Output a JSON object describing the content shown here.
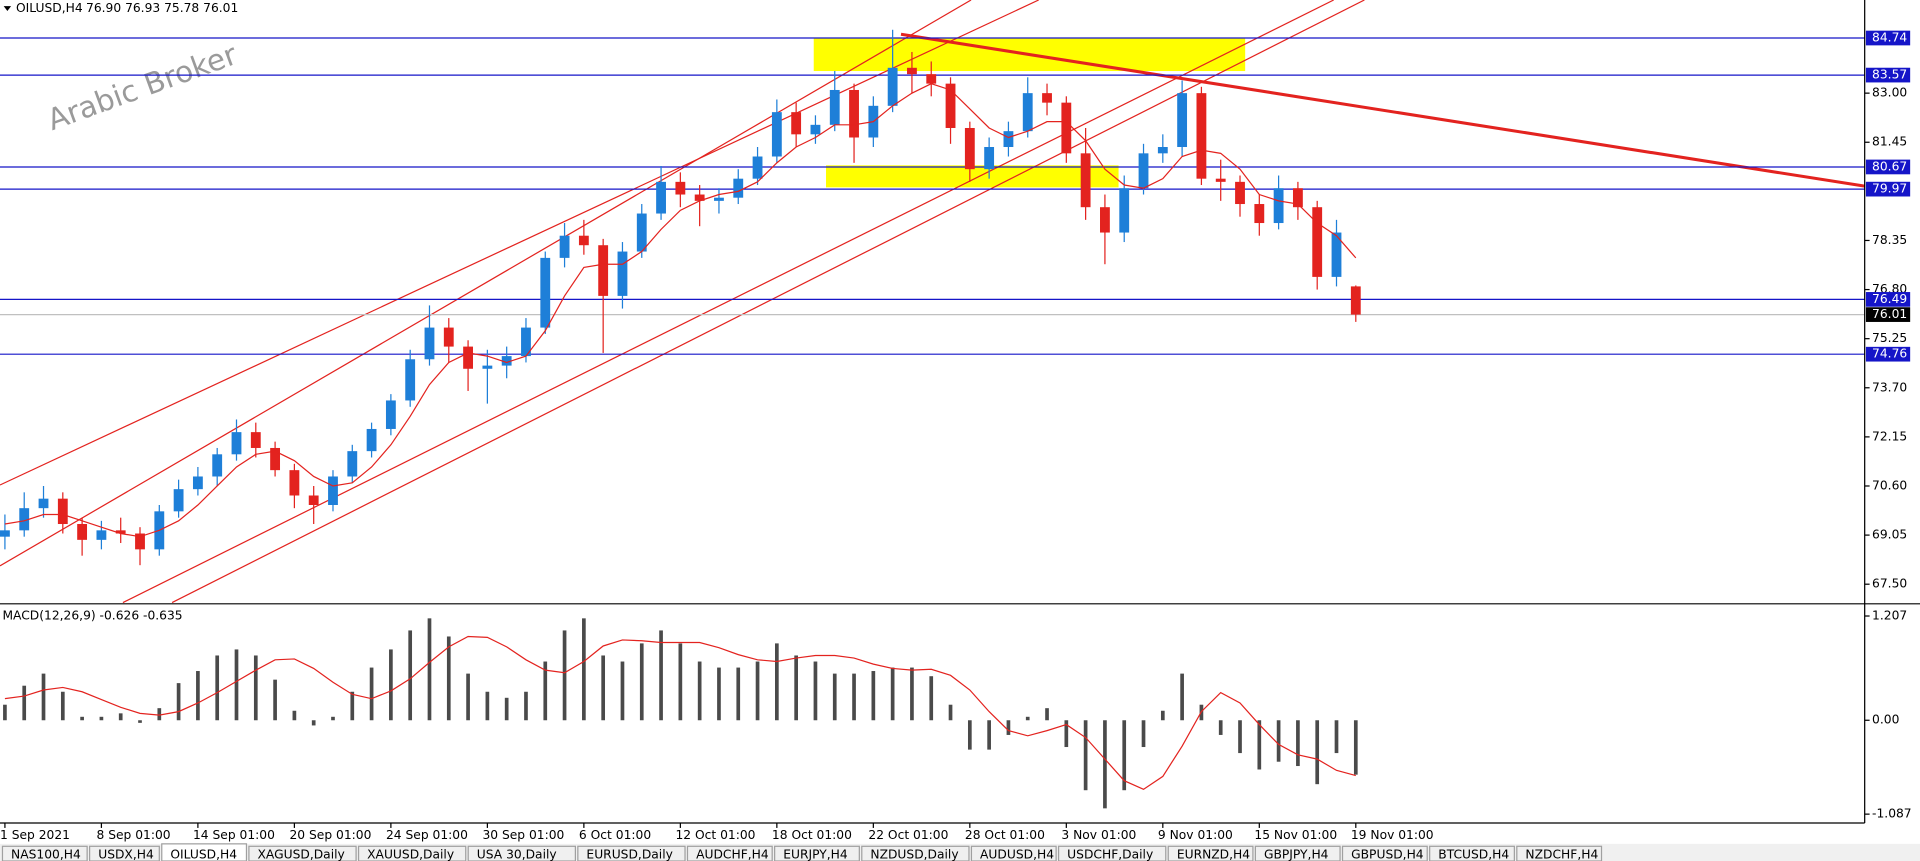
{
  "header": {
    "symbol": "OILUSD,H4",
    "quote": "76.90 76.93 75.78 76.01"
  },
  "watermark": "Arabic Broker",
  "tabs": [
    "NAS100,H4",
    "USDX,H4",
    "OILUSD,H4",
    "XAGUSD,Daily",
    "XAUUSD,Daily",
    "USA 30,Daily",
    "EURUSD,Daily",
    "AUDCHF,H4",
    "EURJPY,H4",
    "NZDUSD,Daily",
    "AUDUSD,H4",
    "USDCHF,Daily",
    "EURNZD,H4",
    "GBPJPY,H4",
    "GBPUSD,H4",
    "BTCUSD,H4",
    "NZDCHF,H4"
  ],
  "active_tab": 2,
  "chart_data": [
    {
      "type": "candlestick",
      "up_color": "#1e7fd8",
      "down_color": "#e3231f",
      "categories": [
        "1 Sep 2021",
        null,
        null,
        null,
        null,
        "8 Sep 01:00",
        null,
        null,
        null,
        null,
        "14 Sep 01:00",
        null,
        null,
        null,
        null,
        "20 Sep 01:00",
        null,
        null,
        null,
        null,
        "24 Sep 01:00",
        null,
        null,
        null,
        null,
        "30 Sep 01:00",
        null,
        null,
        null,
        null,
        "6 Oct 01:00",
        null,
        null,
        null,
        null,
        "12 Oct 01:00",
        null,
        null,
        null,
        null,
        "18 Oct 01:00",
        null,
        null,
        null,
        null,
        "22 Oct 01:00",
        null,
        null,
        null,
        null,
        "28 Oct 01:00",
        null,
        null,
        null,
        null,
        "3 Nov 01:00",
        null,
        null,
        null,
        null,
        "9 Nov 01:00",
        null,
        null,
        null,
        null,
        "15 Nov 01:00",
        null,
        null,
        null,
        null,
        "19 Nov 01:00"
      ],
      "open": [
        69.0,
        69.2,
        69.9,
        70.2,
        69.4,
        68.9,
        69.2,
        69.1,
        68.6,
        69.8,
        70.5,
        70.9,
        71.6,
        72.3,
        71.8,
        71.1,
        70.3,
        70.0,
        70.9,
        71.7,
        72.4,
        73.3,
        74.6,
        75.6,
        75.0,
        74.3,
        74.4,
        74.7,
        75.6,
        77.8,
        78.5,
        78.2,
        76.6,
        78.0,
        79.2,
        80.2,
        79.8,
        79.6,
        79.7,
        80.3,
        81.0,
        82.4,
        81.7,
        82.0,
        83.1,
        81.6,
        82.6,
        83.8,
        83.6,
        83.3,
        81.9,
        80.6,
        81.3,
        81.8,
        83.0,
        82.7,
        81.1,
        79.4,
        78.6,
        80.0,
        81.1,
        81.3,
        83.0,
        80.3,
        80.2,
        79.5,
        78.9,
        80.0,
        79.4,
        77.2,
        76.9
      ],
      "high": [
        69.7,
        70.4,
        70.6,
        70.4,
        69.6,
        69.5,
        69.6,
        69.3,
        70.0,
        70.8,
        71.2,
        71.8,
        72.7,
        72.6,
        72.0,
        71.3,
        70.6,
        71.1,
        71.9,
        72.6,
        73.5,
        74.9,
        76.3,
        75.9,
        75.2,
        74.9,
        75.0,
        75.9,
        78.0,
        78.9,
        79.0,
        78.4,
        78.3,
        79.5,
        80.7,
        80.5,
        80.1,
        80.0,
        80.6,
        81.3,
        82.8,
        82.7,
        82.3,
        83.7,
        83.3,
        82.9,
        85.0,
        84.3,
        84.0,
        83.5,
        82.1,
        81.6,
        82.1,
        83.5,
        83.3,
        82.9,
        81.9,
        79.8,
        80.4,
        81.4,
        81.7,
        83.4,
        83.2,
        80.9,
        80.4,
        79.8,
        80.4,
        80.2,
        79.6,
        79.0,
        76.93
      ],
      "low": [
        68.6,
        69.0,
        69.6,
        69.1,
        68.4,
        68.6,
        68.8,
        68.1,
        68.4,
        69.6,
        70.3,
        70.6,
        71.4,
        71.5,
        70.9,
        69.9,
        69.4,
        69.8,
        70.7,
        71.5,
        72.2,
        73.1,
        74.4,
        74.5,
        73.6,
        73.2,
        74.0,
        74.5,
        75.4,
        77.5,
        77.9,
        74.8,
        76.2,
        77.8,
        79.0,
        79.4,
        78.8,
        79.2,
        79.5,
        80.1,
        80.8,
        81.3,
        81.4,
        81.8,
        80.8,
        81.3,
        82.4,
        83.0,
        82.9,
        81.4,
        80.2,
        80.3,
        81.0,
        81.6,
        82.3,
        80.8,
        79.0,
        77.6,
        78.3,
        79.8,
        80.8,
        81.0,
        80.1,
        79.6,
        79.1,
        78.5,
        78.7,
        79.0,
        76.8,
        76.9,
        75.78
      ],
      "close": [
        69.2,
        69.9,
        70.2,
        69.4,
        68.9,
        69.2,
        69.1,
        68.6,
        69.8,
        70.5,
        70.9,
        71.6,
        72.3,
        71.8,
        71.1,
        70.3,
        70.0,
        70.9,
        71.7,
        72.4,
        73.3,
        74.6,
        75.6,
        75.0,
        74.3,
        74.4,
        74.7,
        75.6,
        77.8,
        78.5,
        78.2,
        76.6,
        78.0,
        79.2,
        80.2,
        79.8,
        79.6,
        79.7,
        80.3,
        81.0,
        82.4,
        81.7,
        82.0,
        83.1,
        81.6,
        82.6,
        83.8,
        83.6,
        83.3,
        81.9,
        80.6,
        81.3,
        81.8,
        83.0,
        82.7,
        81.1,
        79.4,
        78.6,
        80.0,
        81.1,
        81.3,
        83.0,
        80.3,
        80.2,
        79.5,
        78.9,
        80.0,
        79.4,
        77.2,
        78.6,
        76.01
      ],
      "ma": {
        "color": "#e3231f",
        "values": [
          69.4,
          69.5,
          69.7,
          69.7,
          69.5,
          69.3,
          69.1,
          69.0,
          69.2,
          69.5,
          70.0,
          70.6,
          71.2,
          71.6,
          71.7,
          71.4,
          70.9,
          70.6,
          70.7,
          71.2,
          71.9,
          72.8,
          73.8,
          74.5,
          74.8,
          74.7,
          74.5,
          74.7,
          75.5,
          76.6,
          77.5,
          77.6,
          77.6,
          78.0,
          78.7,
          79.3,
          79.6,
          79.8,
          79.9,
          80.2,
          80.8,
          81.3,
          81.6,
          82.0,
          82.0,
          82.1,
          82.6,
          83.0,
          83.3,
          83.1,
          82.5,
          81.9,
          81.6,
          81.8,
          82.1,
          82.1,
          81.5,
          80.6,
          80.1,
          80.0,
          80.3,
          81.0,
          81.2,
          81.1,
          80.6,
          79.8,
          79.6,
          79.5,
          78.9,
          78.5,
          77.8
        ]
      },
      "ylim": [
        66.92,
        85.94
      ],
      "yticks": [
        {
          "value": 67.5,
          "label": "67.50"
        },
        69.05,
        {
          "value": 70.6,
          "label": "70.60"
        },
        72.15,
        {
          "value": 73.7,
          "label": "73.70"
        },
        75.25,
        {
          "value": 76.8,
          "label": "76.80"
        },
        78.35,
        81.45,
        {
          "value": 83,
          "label": "83.00"
        }
      ],
      "levels": [
        84.74,
        83.57,
        80.67,
        79.97,
        76.49,
        74.76
      ],
      "level_color": "#1515c8",
      "last_price": 76.01
    },
    {
      "type": "macd",
      "title": "MACD(12,26,9) -0.626 -0.635",
      "bar_color": "#4a4a4a",
      "signal_color": "#e3231f",
      "histogram": [
        0.18,
        0.4,
        0.54,
        0.33,
        0.04,
        0.04,
        0.08,
        -0.03,
        0.14,
        0.43,
        0.57,
        0.75,
        0.82,
        0.75,
        0.47,
        0.11,
        -0.06,
        0.04,
        0.33,
        0.61,
        0.82,
        1.04,
        1.18,
        0.97,
        0.54,
        0.33,
        0.26,
        0.33,
        0.68,
        1.04,
        1.18,
        0.75,
        0.68,
        0.89,
        1.04,
        0.89,
        0.68,
        0.61,
        0.61,
        0.68,
        0.89,
        0.75,
        0.68,
        0.54,
        0.54,
        0.57,
        0.61,
        0.61,
        0.51,
        0.18,
        -0.34,
        -0.34,
        -0.17,
        0.04,
        0.14,
        -0.31,
        -0.81,
        -1.02,
        -0.81,
        -0.31,
        0.11,
        0.54,
        0.18,
        -0.17,
        -0.38,
        -0.57,
        -0.48,
        -0.53,
        -0.74,
        -0.38,
        -0.63
      ],
      "signal": [
        0.25,
        0.28,
        0.35,
        0.38,
        0.33,
        0.24,
        0.15,
        0.08,
        0.06,
        0.1,
        0.2,
        0.32,
        0.45,
        0.58,
        0.7,
        0.71,
        0.6,
        0.44,
        0.3,
        0.25,
        0.34,
        0.48,
        0.67,
        0.85,
        0.97,
        0.96,
        0.85,
        0.7,
        0.58,
        0.55,
        0.68,
        0.86,
        0.93,
        0.92,
        0.9,
        0.9,
        0.9,
        0.84,
        0.76,
        0.7,
        0.68,
        0.72,
        0.75,
        0.75,
        0.72,
        0.65,
        0.6,
        0.58,
        0.59,
        0.52,
        0.35,
        0.1,
        -0.12,
        -0.18,
        -0.12,
        -0.05,
        -0.2,
        -0.45,
        -0.7,
        -0.8,
        -0.65,
        -0.3,
        0.1,
        0.32,
        0.2,
        -0.05,
        -0.28,
        -0.4,
        -0.45,
        -0.58,
        -0.64
      ],
      "ylim": [
        -1.19,
        1.32
      ],
      "yticks": [
        1.207,
        {
          "value": 0,
          "label": "0.00"
        },
        -1.087
      ]
    }
  ]
}
